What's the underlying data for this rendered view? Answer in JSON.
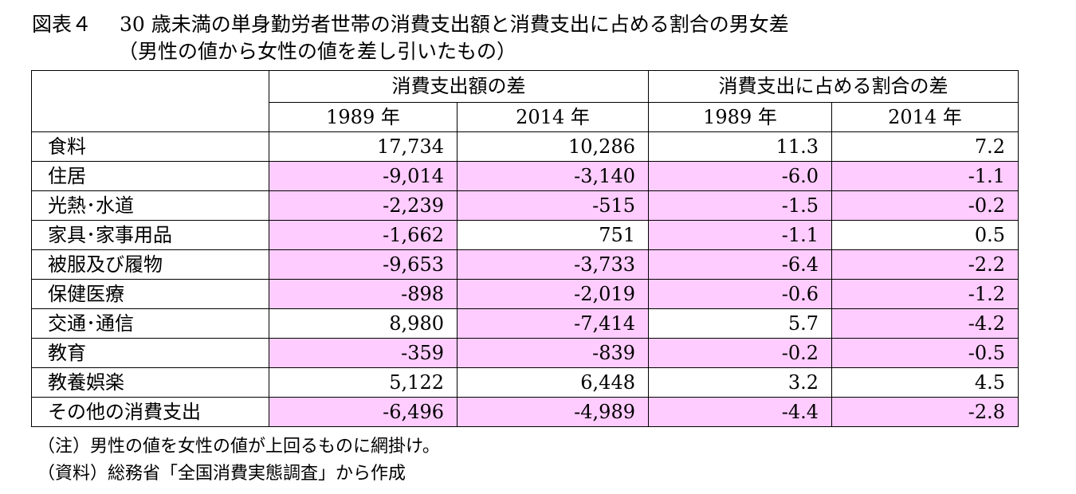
{
  "title": {
    "figure_number": "図表４",
    "line1": "30 歳未満の単身勤労者世帯の消費支出額と消費支出に占める割合の男女差",
    "line2": "（男性の値から女性の値を差し引いたもの）"
  },
  "table": {
    "group_headers": [
      "消費支出額の差",
      "消費支出に占める割合の差"
    ],
    "year_headers": [
      "1989 年",
      "2014 年",
      "1989 年",
      "2014 年"
    ],
    "rows": [
      {
        "label": "食料",
        "values": [
          "17,734",
          "10,286",
          "11.3",
          "7.2"
        ],
        "highlight": [
          false,
          false,
          false,
          false
        ]
      },
      {
        "label": "住居",
        "values": [
          "-9,014",
          "-3,140",
          "-6.0",
          "-1.1"
        ],
        "highlight": [
          true,
          true,
          true,
          true
        ]
      },
      {
        "label": "光熱･水道",
        "values": [
          "-2,239",
          "-515",
          "-1.5",
          "-0.2"
        ],
        "highlight": [
          true,
          true,
          true,
          true
        ]
      },
      {
        "label": "家具･家事用品",
        "values": [
          "-1,662",
          "751",
          "-1.1",
          "0.5"
        ],
        "highlight": [
          true,
          false,
          true,
          false
        ]
      },
      {
        "label": "被服及び履物",
        "values": [
          "-9,653",
          "-3,733",
          "-6.4",
          "-2.2"
        ],
        "highlight": [
          true,
          true,
          true,
          true
        ]
      },
      {
        "label": "保健医療",
        "values": [
          "-898",
          "-2,019",
          "-0.6",
          "-1.2"
        ],
        "highlight": [
          true,
          true,
          true,
          true
        ]
      },
      {
        "label": "交通･通信",
        "values": [
          "8,980",
          "-7,414",
          "5.7",
          "-4.2"
        ],
        "highlight": [
          false,
          true,
          false,
          true
        ]
      },
      {
        "label": "教育",
        "values": [
          "-359",
          "-839",
          "-0.2",
          "-0.5"
        ],
        "highlight": [
          true,
          true,
          true,
          true
        ]
      },
      {
        "label": "教養娯楽",
        "values": [
          "5,122",
          "6,448",
          "3.2",
          "4.5"
        ],
        "highlight": [
          false,
          false,
          false,
          false
        ]
      },
      {
        "label": "その他の消費支出",
        "values": [
          "-6,496",
          "-4,989",
          "-4.4",
          "-2.8"
        ],
        "highlight": [
          true,
          true,
          true,
          true
        ]
      }
    ],
    "highlight_color": "#ffccff"
  },
  "notes": [
    "（注）男性の値を女性の値が上回るものに網掛け。",
    "（資料）総務省「全国消費実態調査」から作成"
  ]
}
